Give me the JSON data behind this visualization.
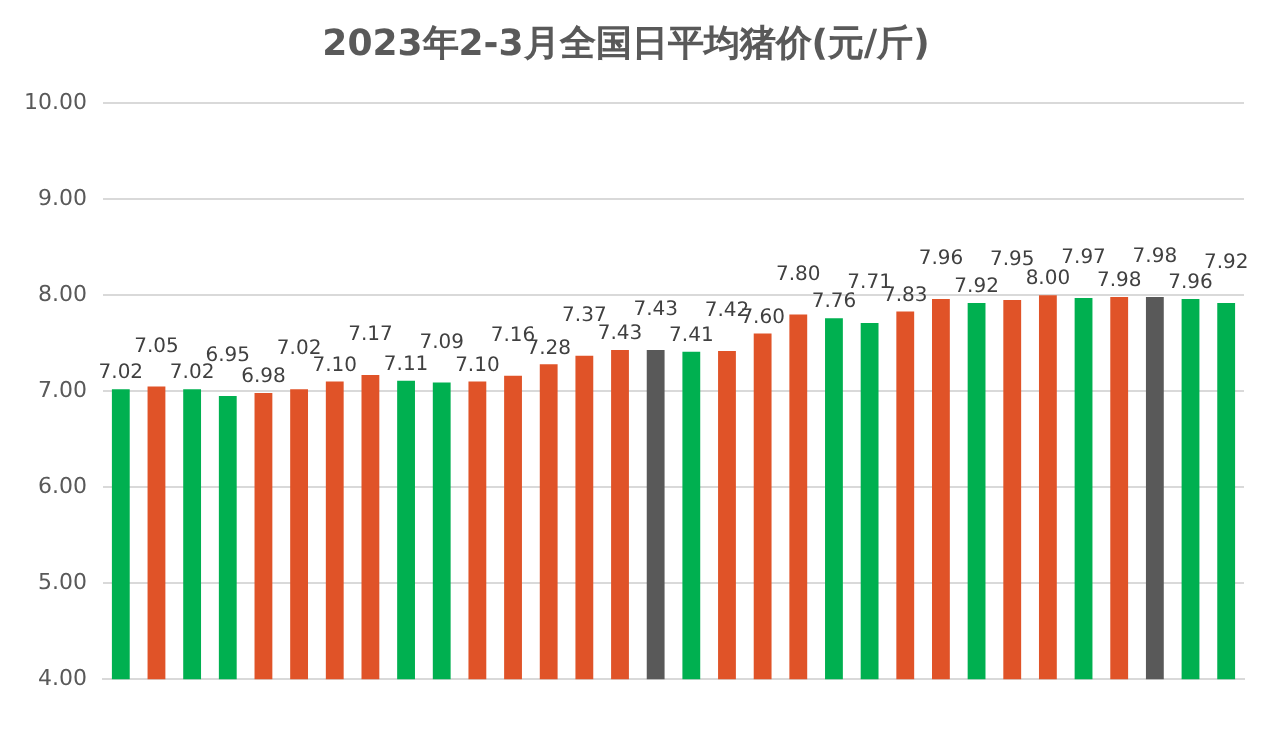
{
  "chart_data": {
    "type": "bar",
    "title": "2023年2-3月全国日平均猪价(元/斤)",
    "categories": [
      null,
      null,
      null,
      null,
      null,
      null,
      null,
      null,
      null,
      null,
      null,
      null,
      null,
      null,
      null,
      null,
      null,
      null,
      null,
      null,
      null,
      null,
      null,
      null,
      null,
      null,
      null,
      null,
      null,
      null,
      null,
      null
    ],
    "values": [
      7.02,
      7.05,
      7.02,
      6.95,
      6.98,
      7.02,
      7.1,
      7.17,
      7.11,
      7.09,
      7.1,
      7.16,
      7.28,
      7.37,
      7.43,
      7.43,
      7.41,
      7.42,
      7.6,
      7.8,
      7.76,
      7.71,
      7.83,
      7.96,
      7.92,
      7.95,
      8.0,
      7.97,
      7.98,
      7.98,
      7.96,
      7.92
    ],
    "value_labels": [
      "7.02",
      "7.05",
      "7.02",
      "6.95",
      "6.98",
      "7.02",
      "7.10",
      "7.17",
      "7.11",
      "7.09",
      "7.10",
      "7.16",
      "7.28",
      "7.37",
      "7.43",
      "7.43",
      "7.41",
      "7.42",
      "7.60",
      "7.80",
      "7.76",
      "7.71",
      "7.83",
      "7.96",
      "7.92",
      "7.95",
      "8.00",
      "7.97",
      "7.98",
      "7.98",
      "7.96",
      "7.92"
    ],
    "colors": [
      "#00b050",
      "#e05328",
      "#00b050",
      "#00b050",
      "#e05328",
      "#e05328",
      "#e05328",
      "#e05328",
      "#00b050",
      "#00b050",
      "#e05328",
      "#e05328",
      "#e05328",
      "#e05328",
      "#e05328",
      "#595959",
      "#00b050",
      "#e05328",
      "#e05328",
      "#e05328",
      "#00b050",
      "#00b050",
      "#e05328",
      "#e05328",
      "#00b050",
      "#e05328",
      "#e05328",
      "#00b050",
      "#e05328",
      "#595959",
      "#00b050",
      "#00b050"
    ],
    "ylim": [
      4,
      10
    ],
    "yticks": [
      {
        "value": 4,
        "label": "4.00"
      },
      {
        "value": 5,
        "label": "5.00"
      },
      {
        "value": 6,
        "label": "6.00"
      },
      {
        "value": 7,
        "label": "7.00"
      },
      {
        "value": 8,
        "label": "8.00"
      },
      {
        "value": 9,
        "label": "9.00"
      },
      {
        "value": 10,
        "label": "10.00"
      }
    ],
    "grid": "y",
    "legend": false
  }
}
